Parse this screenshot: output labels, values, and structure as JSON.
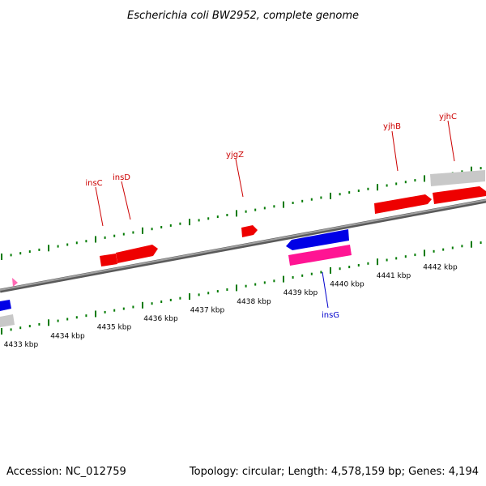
{
  "title": "Escherichia coli BW2952, complete genome",
  "footer": {
    "accession": "Accession: NC_012759",
    "summary": "Topology: circular; Length: 4,578,159 bp; Genes: 4,194"
  },
  "colors": {
    "backbone": "#808080",
    "tick": "#007a00",
    "forward_gene": "#ff0000",
    "reverse_gene": "#0000e6",
    "highlight_gene": "#ff1493",
    "other_feature": "#c8c8c8",
    "label_red": "#cc0000",
    "label_blue": "#0000cc"
  },
  "scale": {
    "kbp_labels": [
      "4433 kbp",
      "4434 kbp",
      "4435 kbp",
      "4436 kbp",
      "4437 kbp",
      "4438 kbp",
      "4439 kbp",
      "4440 kbp",
      "4441 kbp",
      "4442 kbp"
    ]
  },
  "gene_labels": [
    "insC",
    "insD",
    "yjgZ",
    "yjhB",
    "yjhC",
    "insG"
  ],
  "features": [
    {
      "name": "feature-left-blue",
      "type": "reverse"
    },
    {
      "name": "feature-left-grey",
      "type": "other"
    },
    {
      "name": "feature-pink-marker",
      "type": "highlight"
    },
    {
      "name": "gene-insC",
      "type": "forward"
    },
    {
      "name": "gene-insD",
      "type": "forward"
    },
    {
      "name": "gene-yjgZ",
      "type": "forward"
    },
    {
      "name": "gene-insG-blue",
      "type": "reverse"
    },
    {
      "name": "gene-insG-pink",
      "type": "highlight"
    },
    {
      "name": "gene-yjhB",
      "type": "forward"
    },
    {
      "name": "gene-yjhC-grey",
      "type": "other"
    },
    {
      "name": "gene-yjhC",
      "type": "forward"
    }
  ]
}
